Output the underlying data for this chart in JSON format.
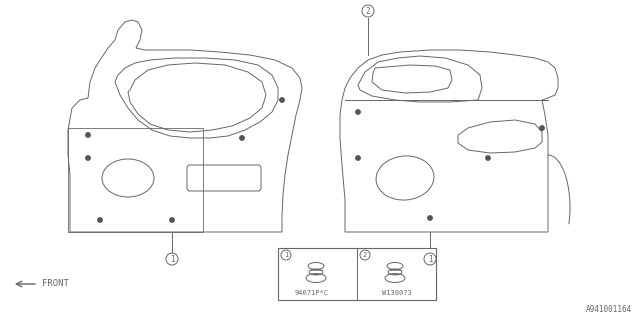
{
  "bg_color": "#ffffff",
  "line_color": "#666666",
  "dot_color": "#555555",
  "diagram_id": "A941001164",
  "part1_label": "94071P*C",
  "part2_label": "W130073",
  "front_label": "FRONT"
}
